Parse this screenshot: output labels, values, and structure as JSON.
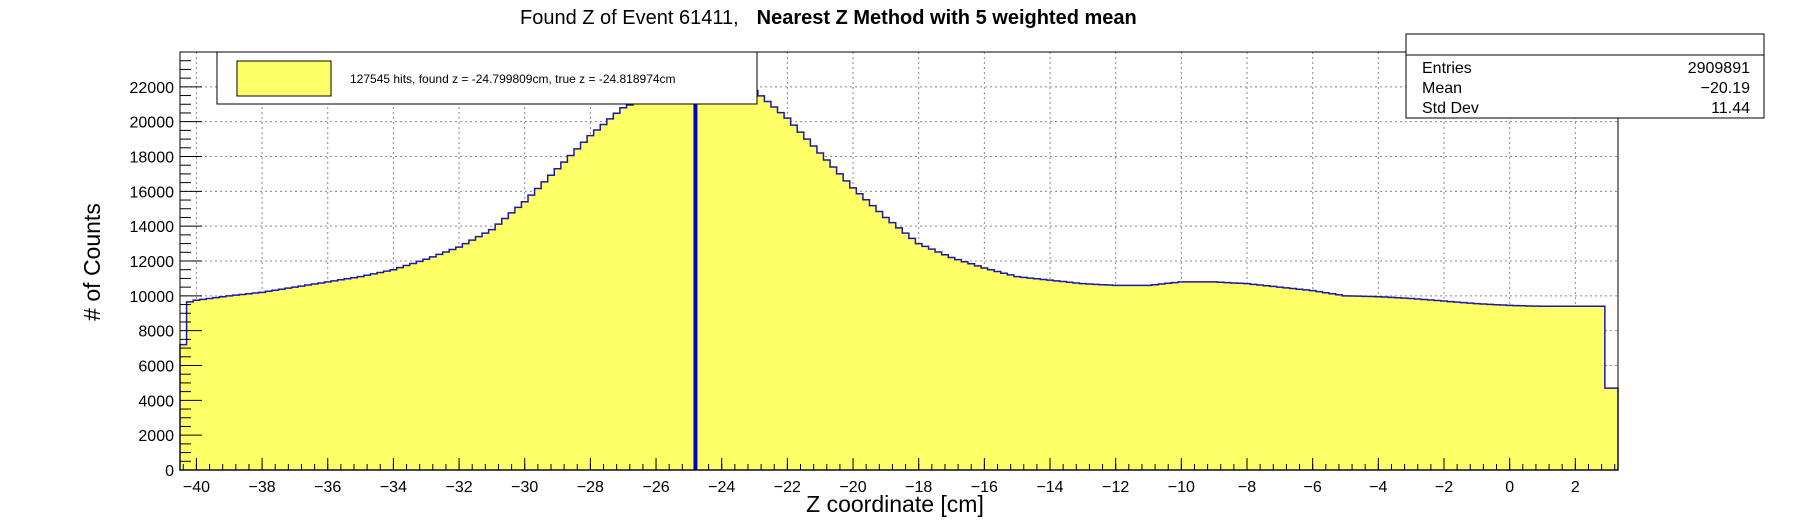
{
  "title": {
    "prefix": "Found Z of Event 61411,",
    "bold": "Nearest Z Method with 5 weighted mean"
  },
  "stats": {
    "rows": [
      {
        "label": "Entries",
        "value": "2909891"
      },
      {
        "label": "Mean",
        "value": "−20.19"
      },
      {
        "label": "Std Dev",
        "value": "11.44"
      }
    ]
  },
  "legend": {
    "label": "127545 hits, found z = -24.799809cm, true z = -24.818974cm"
  },
  "colors": {
    "fill": "#ffff66",
    "outline": "#1a1aa6",
    "marker": "#0000cc"
  },
  "chart_data": {
    "type": "area",
    "xlabel": "Z coordinate [cm]",
    "ylabel": "# of Counts",
    "xlim": [
      -40.5,
      3.3
    ],
    "ylim": [
      0,
      24000
    ],
    "grid": true,
    "legend_position": "top-left",
    "xticks": [
      -40,
      -38,
      -36,
      -34,
      -32,
      -30,
      -28,
      -26,
      -24,
      -22,
      -20,
      -18,
      -16,
      -14,
      -12,
      -10,
      -8,
      -6,
      -4,
      -2,
      0,
      2
    ],
    "yticks": [
      0,
      2000,
      4000,
      6000,
      8000,
      10000,
      12000,
      14000,
      16000,
      18000,
      20000,
      22000
    ],
    "marker_line_x": -24.8,
    "profile": [
      [
        -40.5,
        4800
      ],
      [
        -40.3,
        9600
      ],
      [
        -40.0,
        9750
      ],
      [
        -39.0,
        10000
      ],
      [
        -38.0,
        10200
      ],
      [
        -37.0,
        10500
      ],
      [
        -36.0,
        10800
      ],
      [
        -35.0,
        11100
      ],
      [
        -34.0,
        11500
      ],
      [
        -33.0,
        12100
      ],
      [
        -32.0,
        12800
      ],
      [
        -31.0,
        13800
      ],
      [
        -30.0,
        15400
      ],
      [
        -29.0,
        17300
      ],
      [
        -28.0,
        19200
      ],
      [
        -27.0,
        20800
      ],
      [
        -26.5,
        21200
      ],
      [
        -25.0,
        22000
      ],
      [
        -24.8,
        22200
      ],
      [
        -24.0,
        22300
      ],
      [
        -23.0,
        21800
      ],
      [
        -22.0,
        20200
      ],
      [
        -21.0,
        18200
      ],
      [
        -20.0,
        16200
      ],
      [
        -19.0,
        14500
      ],
      [
        -18.0,
        13000
      ],
      [
        -17.0,
        12200
      ],
      [
        -16.0,
        11600
      ],
      [
        -15.0,
        11100
      ],
      [
        -14.0,
        10900
      ],
      [
        -13.0,
        10700
      ],
      [
        -12.0,
        10600
      ],
      [
        -11.0,
        10600
      ],
      [
        -10.0,
        10800
      ],
      [
        -9.0,
        10800
      ],
      [
        -8.0,
        10700
      ],
      [
        -7.0,
        10500
      ],
      [
        -6.0,
        10300
      ],
      [
        -5.0,
        10000
      ],
      [
        -4.0,
        9950
      ],
      [
        -3.0,
        9850
      ],
      [
        -2.0,
        9700
      ],
      [
        -1.0,
        9550
      ],
      [
        0.0,
        9450
      ],
      [
        1.0,
        9400
      ],
      [
        2.0,
        9400
      ],
      [
        2.8,
        9400
      ],
      [
        3.0,
        4700
      ],
      [
        3.3,
        4700
      ]
    ]
  }
}
